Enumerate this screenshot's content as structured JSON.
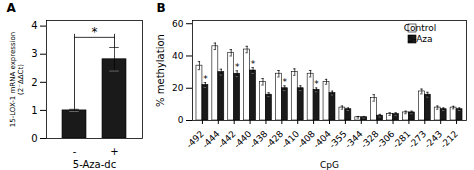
{
  "chart_data": [
    {
      "type": "bar",
      "title": "A",
      "categories": [
        "-",
        "+"
      ],
      "values": [
        1.0,
        2.82
      ],
      "errors": [
        0.04,
        0.42
      ],
      "color": "#1a1a1a",
      "xlabel": "5-Aza-dc",
      "ylabel": "15-LOX-1 mRNA expression\n(2⁻ΔΔCt)",
      "ylim": [
        0,
        4.2
      ],
      "yticks": [
        0,
        1,
        2,
        3,
        4
      ],
      "grid": false,
      "annotations": [
        {
          "text": "*",
          "x": [
            "-",
            "+"
          ],
          "y": 3.6
        }
      ]
    },
    {
      "type": "bar",
      "title": "B",
      "categories": [
        "-492",
        "-444",
        "-442",
        "-440",
        "-438",
        "-428",
        "-410",
        "-408",
        "-404",
        "-355",
        "-344",
        "-328",
        "-306",
        "-281",
        "-273",
        "-243",
        "-212"
      ],
      "series": [
        {
          "name": "Control",
          "color": "#ffffff",
          "values": [
            34,
            46,
            42,
            44,
            24,
            29,
            30,
            29,
            24,
            8,
            2,
            14,
            4,
            5,
            18,
            8,
            8
          ],
          "errors": [
            2.5,
            2.0,
            2.0,
            2.0,
            2.0,
            2.0,
            2.0,
            2.0,
            1.5,
            1.0,
            0.5,
            2.0,
            0.8,
            0.8,
            1.5,
            1.0,
            0.8
          ]
        },
        {
          "name": "5-Aza",
          "color": "#1a1a1a",
          "values": [
            22,
            30,
            29,
            31,
            16,
            20,
            20,
            19,
            17,
            7,
            2,
            3,
            4,
            5,
            16,
            7,
            7
          ],
          "errors": [
            1.5,
            1.8,
            1.8,
            1.8,
            1.2,
            1.5,
            1.5,
            1.2,
            1.2,
            0.8,
            0.5,
            0.8,
            0.8,
            0.8,
            1.5,
            0.8,
            0.8
          ]
        }
      ],
      "xlabel": "CpG",
      "ylabel": "% methylation",
      "ylim": [
        0,
        62
      ],
      "yticks": [
        0,
        20,
        40,
        60
      ],
      "grid": false,
      "legend": "upper right",
      "annotations": [
        {
          "text": "*",
          "x": "-492",
          "series": "5-Aza"
        },
        {
          "text": "*",
          "x": "-442",
          "series": "5-Aza"
        },
        {
          "text": "*",
          "x": "-440",
          "series": "5-Aza"
        },
        {
          "text": "*",
          "x": "-428",
          "series": "5-Aza"
        },
        {
          "text": "*",
          "x": "-408",
          "series": "5-Aza"
        }
      ]
    }
  ]
}
